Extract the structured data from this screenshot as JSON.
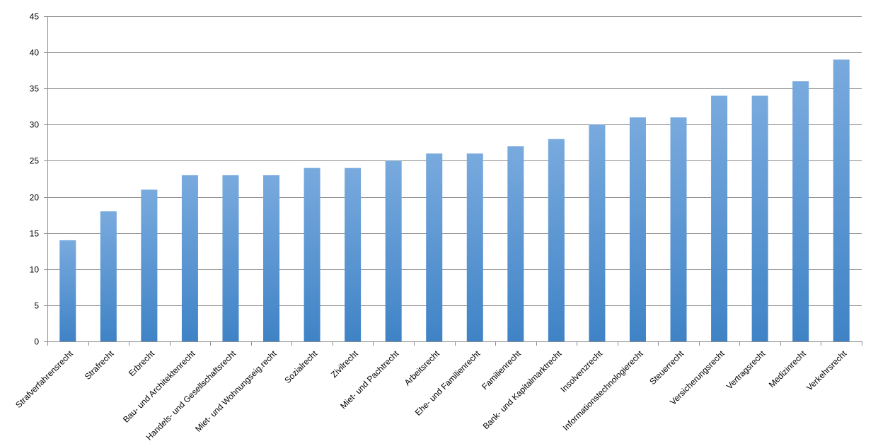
{
  "chart_data": {
    "type": "bar",
    "title": "",
    "xlabel": "",
    "ylabel": "",
    "ylim": [
      0,
      45
    ],
    "yticks": [
      0,
      5,
      10,
      15,
      20,
      25,
      30,
      35,
      40,
      45
    ],
    "grid": true,
    "legend": "none",
    "bar_color": "#5b9bd5",
    "categories": [
      "Strafverfahrensrecht",
      "Strafrecht",
      "Erbrecht",
      "Bau- und Architektenrecht",
      "Handels- und Gesellschaftsrecht",
      "Miet- und Wohnungseig.recht",
      "Sozialrecht",
      "Zivilrecht",
      "Miet- und Pachtrecht",
      "Arbeitsrecht",
      "Ehe- und Familienrecht",
      "Familienrecht",
      "Bank- und Kapitalmarktrecht",
      "Insolvenzrecht",
      "Informationstechnologierecht",
      "Steuerrecht",
      "Versicherungsrecht",
      "Vertragsrecht",
      "Medizinrecht",
      "Verkehrsrecht"
    ],
    "values": [
      14,
      18,
      21,
      23,
      23,
      23,
      24,
      24,
      25,
      26,
      26,
      27,
      28,
      30,
      31,
      31,
      34,
      34,
      36,
      39
    ]
  }
}
